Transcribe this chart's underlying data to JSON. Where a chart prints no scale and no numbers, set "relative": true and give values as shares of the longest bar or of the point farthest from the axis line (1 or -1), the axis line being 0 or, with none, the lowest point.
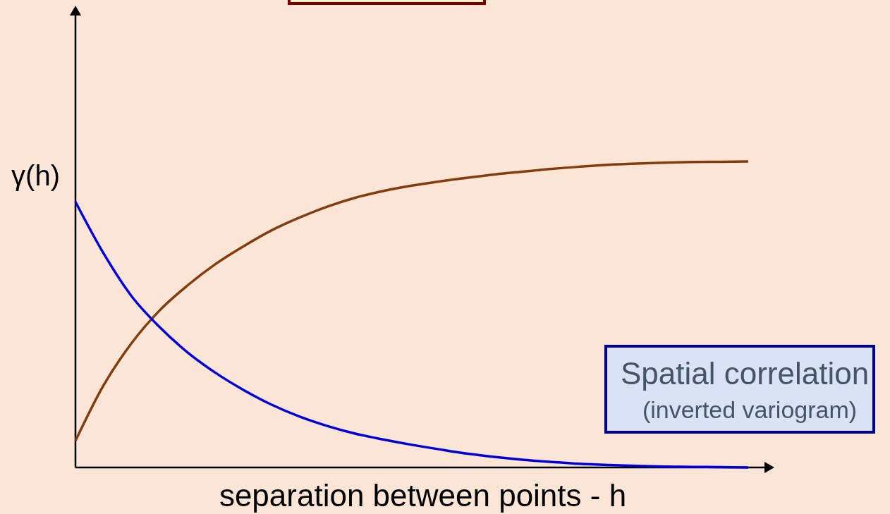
{
  "chart_data": {
    "type": "line",
    "relative": true,
    "xlabel": "separation between points - h",
    "ylabel": "γ(h)",
    "categories": [
      null,
      null,
      null,
      null,
      null,
      null,
      null,
      null,
      null,
      null,
      null,
      null,
      null,
      null,
      null,
      null,
      null,
      null,
      null,
      null,
      null,
      null,
      null,
      null,
      null
    ],
    "series": [
      {
        "color": "#843c0c",
        "values": [
          0.087,
          0.268,
          0.406,
          0.513,
          0.595,
          0.665,
          0.723,
          0.775,
          0.817,
          0.853,
          0.882,
          0.904,
          0.921,
          0.935,
          0.947,
          0.958,
          0.967,
          0.976,
          0.983,
          0.989,
          0.993,
          0.996,
          0.998,
          0.999,
          1
        ]
      },
      {
        "color": "#0000dd",
        "values": [
          0.868,
          0.7,
          0.56,
          0.459,
          0.376,
          0.309,
          0.253,
          0.205,
          0.166,
          0.135,
          0.11,
          0.091,
          0.074,
          0.059,
          0.045,
          0.034,
          0.025,
          0.018,
          0.012,
          0.008,
          0.005,
          0.003,
          0.002,
          0.001,
          0
        ]
      }
    ],
    "annotations": [
      "Spatial correlation",
      "(inverted variogram)"
    ]
  }
}
